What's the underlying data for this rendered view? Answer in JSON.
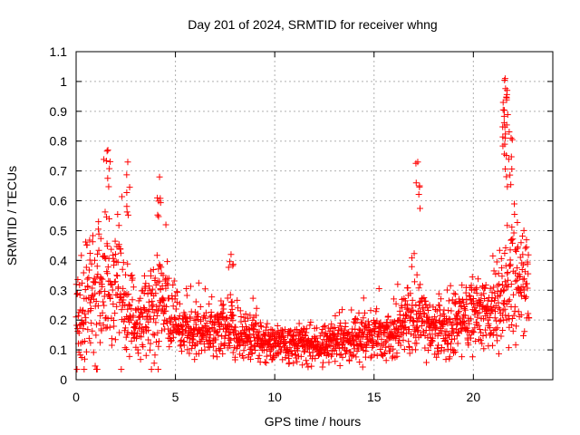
{
  "chart_data": {
    "type": "scatter",
    "title": "Day 201 of 2024, SRMTID for receiver whng",
    "xlabel": "GPS time / hours",
    "ylabel": "SRMTID / TECUs",
    "xlim": [
      0,
      24
    ],
    "ylim": [
      0,
      1.1
    ],
    "grid": true,
    "marker": "+",
    "marker_color": "#ff0000",
    "x_ticks": [
      {
        "value": 0,
        "label": "0"
      },
      {
        "value": 5,
        "label": "5"
      },
      {
        "value": 10,
        "label": "10"
      },
      {
        "value": 15,
        "label": "15"
      },
      {
        "value": 20,
        "label": "20"
      }
    ],
    "y_ticks": [
      {
        "value": 0,
        "label": "0"
      },
      {
        "value": 0.1,
        "label": "0.1"
      },
      {
        "value": 0.2,
        "label": "0.2"
      },
      {
        "value": 0.3,
        "label": "0.3"
      },
      {
        "value": 0.4,
        "label": "0.4"
      },
      {
        "value": 0.5,
        "label": "0.5"
      },
      {
        "value": 0.6,
        "label": "0.6"
      },
      {
        "value": 0.7,
        "label": "0.7"
      },
      {
        "value": 0.8,
        "label": "0.8"
      },
      {
        "value": 0.9,
        "label": "0.9"
      },
      {
        "value": 1.0,
        "label": "1"
      },
      {
        "value": 1.1,
        "label": "1.1"
      }
    ],
    "x_range_of_data": [
      0.0,
      22.8
    ],
    "profile_hours": [
      0,
      0.5,
      1,
      1.5,
      2,
      2.5,
      3,
      3.5,
      4,
      4.5,
      5,
      5.5,
      6,
      6.5,
      7,
      7.5,
      8,
      8.5,
      9,
      9.5,
      10,
      10.5,
      11,
      11.5,
      12,
      12.5,
      13,
      13.5,
      14,
      14.5,
      15,
      15.5,
      16,
      16.5,
      17,
      17.5,
      18,
      18.5,
      19,
      19.5,
      20,
      20.5,
      21,
      21.5,
      22,
      22.5,
      22.8
    ],
    "profile_median": [
      0.18,
      0.25,
      0.3,
      0.32,
      0.3,
      0.25,
      0.2,
      0.2,
      0.22,
      0.25,
      0.2,
      0.17,
      0.16,
      0.16,
      0.16,
      0.17,
      0.16,
      0.15,
      0.14,
      0.13,
      0.12,
      0.12,
      0.12,
      0.12,
      0.11,
      0.12,
      0.13,
      0.13,
      0.14,
      0.14,
      0.15,
      0.14,
      0.15,
      0.17,
      0.22,
      0.2,
      0.16,
      0.17,
      0.18,
      0.2,
      0.22,
      0.22,
      0.25,
      0.3,
      0.35,
      0.32,
      0.28
    ],
    "profile_spread": [
      0.07,
      0.12,
      0.15,
      0.15,
      0.14,
      0.12,
      0.07,
      0.07,
      0.1,
      0.1,
      0.07,
      0.06,
      0.05,
      0.05,
      0.05,
      0.06,
      0.05,
      0.05,
      0.05,
      0.04,
      0.04,
      0.04,
      0.04,
      0.04,
      0.04,
      0.04,
      0.04,
      0.04,
      0.05,
      0.05,
      0.05,
      0.05,
      0.05,
      0.07,
      0.1,
      0.07,
      0.05,
      0.06,
      0.07,
      0.07,
      0.08,
      0.07,
      0.09,
      0.12,
      0.13,
      0.11,
      0.08
    ],
    "peaks": [
      {
        "x": 1.6,
        "y": 0.77
      },
      {
        "x": 2.6,
        "y": 0.73
      },
      {
        "x": 4.2,
        "y": 0.68
      },
      {
        "x": 7.8,
        "y": 0.42
      },
      {
        "x": 17.2,
        "y": 0.73
      },
      {
        "x": 21.6,
        "y": 1.01
      },
      {
        "x": 21.7,
        "y": 0.97
      },
      {
        "x": 21.5,
        "y": 0.93
      },
      {
        "x": 21.6,
        "y": 0.81
      },
      {
        "x": 21.9,
        "y": 0.81
      }
    ]
  }
}
